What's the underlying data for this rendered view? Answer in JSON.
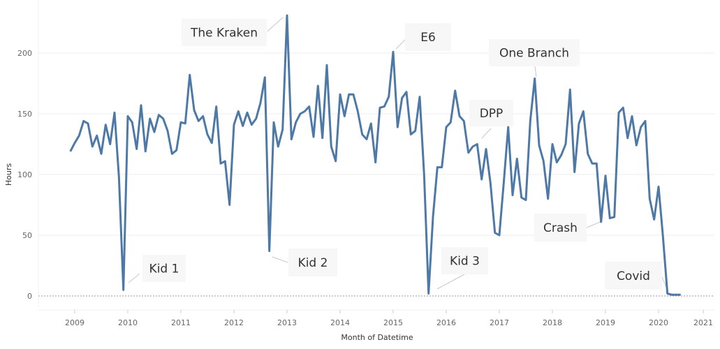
{
  "chart_data": {
    "type": "line",
    "title": "",
    "xlabel": "Month of Datetime",
    "ylabel": "Hours",
    "ylim": [
      0,
      235
    ],
    "yticks": [
      0,
      50,
      100,
      150,
      200
    ],
    "xticks": [
      "2009",
      "2010",
      "2011",
      "2012",
      "2013",
      "2014",
      "2015",
      "2016",
      "2017",
      "2018",
      "2019",
      "2020",
      "2021"
    ],
    "grid": "horizontal",
    "line_color": "#4e79a7",
    "series": [
      {
        "x": [
          "2008-12",
          "2009-01",
          "2009-02",
          "2009-03",
          "2009-04",
          "2009-05",
          "2009-06",
          "2009-07",
          "2009-08",
          "2009-09",
          "2009-10",
          "2009-11",
          "2009-12",
          "2010-01",
          "2010-02",
          "2010-03",
          "2010-04",
          "2010-05",
          "2010-06",
          "2010-07",
          "2010-08",
          "2010-09",
          "2010-10",
          "2010-11",
          "2010-12",
          "2011-01",
          "2011-02",
          "2011-03",
          "2011-04",
          "2011-05",
          "2011-06",
          "2011-07",
          "2011-08",
          "2011-09",
          "2011-10",
          "2011-11",
          "2011-12",
          "2012-01",
          "2012-02",
          "2012-03",
          "2012-04",
          "2012-05",
          "2012-06",
          "2012-07",
          "2012-08",
          "2012-09",
          "2012-10",
          "2012-11",
          "2012-12",
          "2013-01",
          "2013-02",
          "2013-03",
          "2013-04",
          "2013-05",
          "2013-06",
          "2013-07",
          "2013-08",
          "2013-09",
          "2013-10",
          "2013-11",
          "2013-12",
          "2014-01",
          "2014-02",
          "2014-03",
          "2014-04",
          "2014-05",
          "2014-06",
          "2014-07",
          "2014-08",
          "2014-09",
          "2014-10",
          "2014-11",
          "2014-12",
          "2015-01",
          "2015-02",
          "2015-03",
          "2015-04",
          "2015-05",
          "2015-06",
          "2015-07",
          "2015-08",
          "2015-09",
          "2015-10",
          "2015-11",
          "2015-12",
          "2016-01",
          "2016-02",
          "2016-03",
          "2016-04",
          "2016-05",
          "2016-06",
          "2016-07",
          "2016-08",
          "2016-09",
          "2016-10",
          "2016-11",
          "2016-12",
          "2017-01",
          "2017-02",
          "2017-03",
          "2017-04",
          "2017-05",
          "2017-06",
          "2017-07",
          "2017-08",
          "2017-09",
          "2017-10",
          "2017-11",
          "2017-12",
          "2018-01",
          "2018-02",
          "2018-03",
          "2018-04",
          "2018-05",
          "2018-06",
          "2018-07",
          "2018-08",
          "2018-09",
          "2018-10",
          "2018-11",
          "2018-12",
          "2019-01",
          "2019-02",
          "2019-03",
          "2019-04",
          "2019-05",
          "2019-06",
          "2019-07",
          "2019-08",
          "2019-09",
          "2019-10",
          "2019-11",
          "2019-12",
          "2020-01",
          "2020-02",
          "2020-03",
          "2020-04",
          "2020-05",
          "2020-06"
        ],
        "values": [
          119,
          126,
          132,
          144,
          142,
          123,
          132,
          117,
          141,
          125,
          151,
          98,
          5,
          148,
          143,
          121,
          157,
          119,
          146,
          135,
          149,
          146,
          136,
          117,
          120,
          143,
          142,
          182,
          153,
          144,
          148,
          133,
          126,
          156,
          109,
          111,
          75,
          141,
          152,
          140,
          151,
          141,
          146,
          159,
          180,
          37,
          143,
          123,
          137,
          231,
          129,
          143,
          150,
          152,
          156,
          131,
          173,
          130,
          190,
          123,
          111,
          166,
          148,
          166,
          166,
          152,
          133,
          129,
          142,
          110,
          155,
          156,
          164,
          201,
          139,
          163,
          168,
          133,
          136,
          164,
          100,
          2,
          65,
          106,
          106,
          139,
          143,
          169,
          148,
          144,
          118,
          123,
          125,
          96,
          121,
          93,
          52,
          50,
          93,
          139,
          83,
          113,
          81,
          79,
          144,
          179,
          124,
          111,
          80,
          125,
          110,
          116,
          125,
          170,
          102,
          142,
          152,
          117,
          109,
          109,
          61,
          99,
          64,
          65,
          151,
          155,
          130,
          148,
          124,
          139,
          144,
          80,
          63,
          90,
          49,
          2,
          1,
          1,
          1
        ]
      }
    ],
    "annotations": [
      {
        "text": "Kid 1",
        "x": "2009-12"
      },
      {
        "text": "The Kraken",
        "x": "2013-01"
      },
      {
        "text": "Kid 2",
        "x": "2012-09"
      },
      {
        "text": "E6",
        "x": "2015-01"
      },
      {
        "text": "Kid 3",
        "x": "2015-09"
      },
      {
        "text": "DPP",
        "x": "2016-08"
      },
      {
        "text": "One Branch",
        "x": "2017-09"
      },
      {
        "text": "Crash",
        "x": "2018-12"
      },
      {
        "text": "Covid",
        "x": "2020-03"
      }
    ]
  }
}
